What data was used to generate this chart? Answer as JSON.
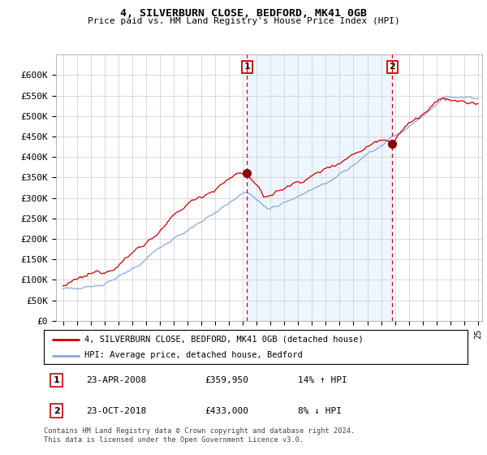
{
  "title": "4, SILVERBURN CLOSE, BEDFORD, MK41 0GB",
  "subtitle": "Price paid vs. HM Land Registry's House Price Index (HPI)",
  "ylabel_ticks": [
    "£0",
    "£50K",
    "£100K",
    "£150K",
    "£200K",
    "£250K",
    "£300K",
    "£350K",
    "£400K",
    "£450K",
    "£500K",
    "£550K",
    "£600K"
  ],
  "ytick_values": [
    0,
    50000,
    100000,
    150000,
    200000,
    250000,
    300000,
    350000,
    400000,
    450000,
    500000,
    550000,
    600000
  ],
  "ylim": [
    0,
    650000
  ],
  "xlim_start": 1995,
  "xlim_end": 2025,
  "sale1_year": 2008.31,
  "sale1_price": 359950,
  "sale1_label": "1",
  "sale1_date": "23-APR-2008",
  "sale1_pct": "14% ↑ HPI",
  "sale2_year": 2018.81,
  "sale2_price": 433000,
  "sale2_label": "2",
  "sale2_date": "23-OCT-2018",
  "sale2_pct": "8% ↓ HPI",
  "house_color": "#cc0000",
  "hpi_color": "#88aadd",
  "hpi_fill_color": "#ddeeff",
  "vline_color": "#cc0000",
  "dot_color": "#8b0000",
  "legend_house": "4, SILVERBURN CLOSE, BEDFORD, MK41 0GB (detached house)",
  "legend_hpi": "HPI: Average price, detached house, Bedford",
  "footer": "Contains HM Land Registry data © Crown copyright and database right 2024.\nThis data is licensed under the Open Government Licence v3.0.",
  "background_color": "#ffffff",
  "grid_color": "#cccccc"
}
